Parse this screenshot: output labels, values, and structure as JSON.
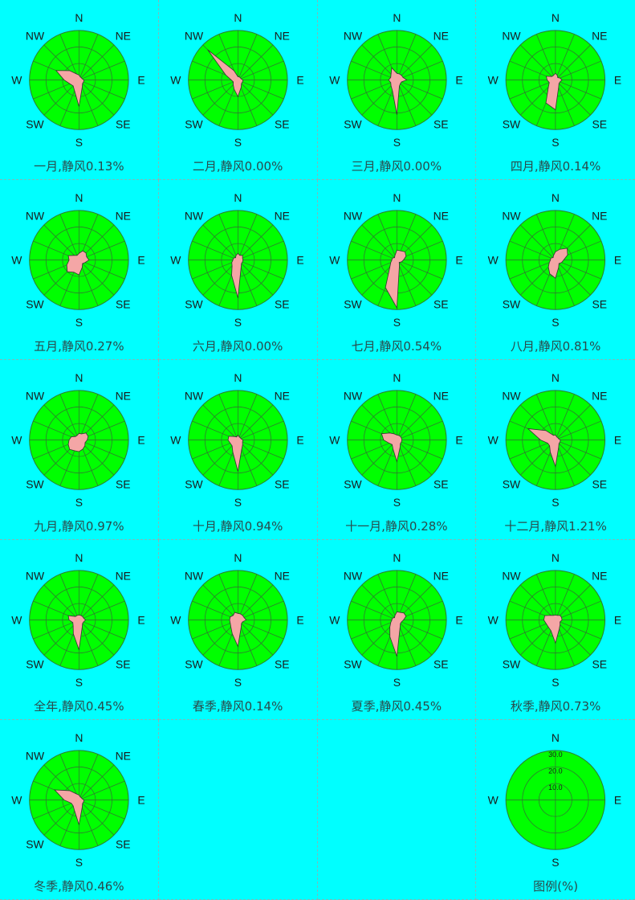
{
  "directions": [
    "N",
    "NE",
    "E",
    "SE",
    "S",
    "SW",
    "W",
    "NW"
  ],
  "legend_directions": [
    "N",
    "E",
    "S",
    "W"
  ],
  "legend_caption": "图例(%)",
  "colors": {
    "background": "#00ffff",
    "disc": "#00ff00",
    "petal": "#f4a6a6",
    "grid": "#2f7a2f",
    "text": "#1a1a1a"
  },
  "chart_data": {
    "type": "wind-rose",
    "sectors": [
      "N",
      "NNE",
      "NE",
      "ENE",
      "E",
      "ESE",
      "SE",
      "SSE",
      "S",
      "SSW",
      "SW",
      "WSW",
      "W",
      "WNW",
      "NW",
      "NNW"
    ],
    "unit": "%",
    "r_max": 30,
    "rings": [
      10,
      20,
      30
    ],
    "ring_labels": [
      "10.0",
      "20.0",
      "30.0"
    ],
    "panels": [
      {
        "label": "一月,静风0.13%",
        "values": [
          3,
          2,
          2,
          2,
          3,
          3,
          3,
          5,
          16,
          7,
          5,
          6,
          9,
          15,
          8,
          4
        ]
      },
      {
        "label": "二月,静风0.00%",
        "values": [
          2,
          2,
          2,
          2,
          3,
          3,
          3,
          5,
          10,
          6,
          4,
          3,
          4,
          8,
          26,
          6
        ]
      },
      {
        "label": "三月,静风0.00%",
        "values": [
          4,
          4,
          4,
          4,
          6,
          3,
          3,
          4,
          21,
          7,
          5,
          4,
          5,
          4,
          5,
          8
        ]
      },
      {
        "label": "四月,静风0.14%",
        "values": [
          4,
          3,
          2,
          3,
          4,
          3,
          3,
          5,
          18,
          15,
          6,
          4,
          5,
          6,
          3,
          3
        ]
      },
      {
        "label": "五月,静风0.27%",
        "values": [
          4,
          6,
          6,
          5,
          6,
          4,
          3,
          5,
          9,
          8,
          10,
          8,
          6,
          7,
          4,
          3
        ]
      },
      {
        "label": "六月,静风0.00%",
        "values": [
          4,
          3,
          4,
          3,
          3,
          3,
          3,
          5,
          23,
          10,
          5,
          4,
          3,
          3,
          2,
          3
        ]
      },
      {
        "label": "七月,静风0.54%",
        "values": [
          6,
          6,
          7,
          6,
          4,
          3,
          2,
          4,
          29,
          18,
          6,
          4,
          3,
          3,
          2,
          3
        ]
      },
      {
        "label": "八月,静风0.81%",
        "values": [
          5,
          7,
          10,
          8,
          5,
          4,
          3,
          5,
          11,
          9,
          6,
          4,
          3,
          3,
          2,
          3
        ]
      },
      {
        "label": "九月,静风0.97%",
        "values": [
          4,
          4,
          6,
          6,
          5,
          4,
          5,
          6,
          7,
          7,
          8,
          7,
          6,
          5,
          3,
          3
        ]
      },
      {
        "label": "十月,静风0.94%",
        "values": [
          3,
          2,
          2,
          2,
          3,
          3,
          4,
          6,
          19,
          8,
          5,
          5,
          6,
          6,
          3,
          2
        ]
      },
      {
        "label": "十一月,静风0.28%",
        "values": [
          3,
          3,
          3,
          3,
          3,
          3,
          3,
          5,
          13,
          6,
          4,
          5,
          8,
          10,
          6,
          4
        ]
      },
      {
        "label": "十二月,静风1.21%",
        "values": [
          3,
          2,
          2,
          2,
          3,
          3,
          3,
          5,
          16,
          8,
          5,
          5,
          9,
          18,
          8,
          3
        ]
      },
      {
        "label": "全年,静风0.45%",
        "values": [
          3,
          3,
          3,
          3,
          4,
          3,
          3,
          5,
          18,
          9,
          5,
          4,
          6,
          7,
          3,
          3
        ]
      },
      {
        "label": "春季,静风0.14%",
        "values": [
          4,
          4,
          4,
          4,
          5,
          3,
          3,
          5,
          16,
          9,
          6,
          5,
          5,
          5,
          4,
          5
        ]
      },
      {
        "label": "夏季,静风0.45%",
        "values": [
          5,
          5,
          6,
          6,
          4,
          3,
          3,
          5,
          22,
          11,
          6,
          4,
          3,
          3,
          2,
          3
        ]
      },
      {
        "label": "秋季,静风0.73%",
        "values": [
          3,
          3,
          4,
          4,
          4,
          3,
          4,
          6,
          14,
          7,
          6,
          6,
          7,
          7,
          4,
          3
        ]
      },
      {
        "label": "冬季,静风0.46%",
        "values": [
          3,
          2,
          2,
          2,
          3,
          3,
          3,
          5,
          15,
          7,
          5,
          5,
          9,
          16,
          8,
          4
        ]
      }
    ]
  }
}
